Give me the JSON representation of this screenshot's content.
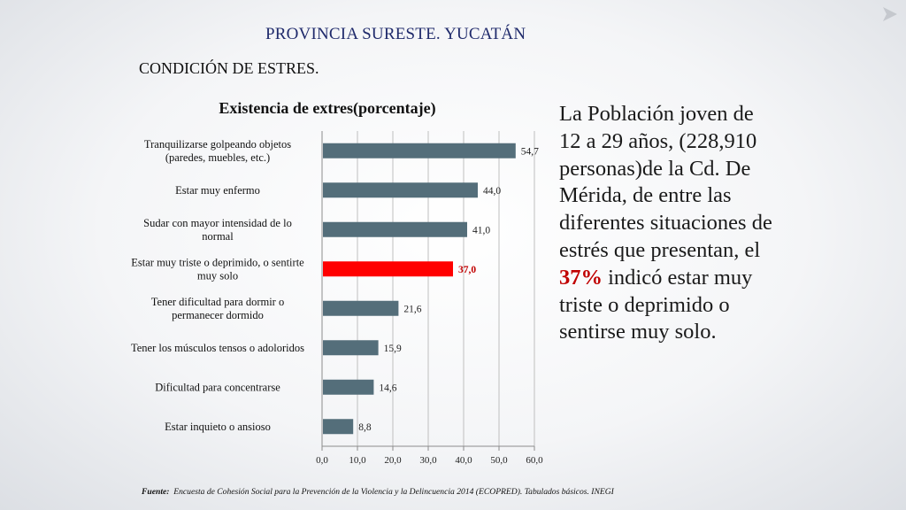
{
  "slide": {
    "title": "PROVINCIA SURESTE. YUCATÁN",
    "subtitle": "CONDICIÓN DE ESTRES."
  },
  "description": {
    "before": "La Población joven de 12 a 29 años, (228,910 personas)de la Cd. De Mérida, de entre las diferentes situaciones de estrés que presentan, el ",
    "highlight": "37%",
    "after": " indicó estar muy triste o deprimido o sentirse muy solo."
  },
  "footnote": {
    "label": "Fuente:",
    "text": "Encuesta de Cohesión Social para la Prevención de la Violencia y la Delincuencia 2014 (ECOPRED). Tabulados básicos. INEGI"
  },
  "colors": {
    "bar": "#546e7a",
    "highlight_bar": "#ff0000",
    "highlight_label": "#c00000",
    "grid": "#bfbfbf"
  },
  "chart_data": {
    "type": "bar",
    "orientation": "horizontal",
    "title": "Existencia de extres(porcentaje)",
    "xlim": [
      0,
      60
    ],
    "xticks": [
      "0,0",
      "10,0",
      "20,0",
      "30,0",
      "40,0",
      "50,0",
      "60,0"
    ],
    "grid": "vertical",
    "categories": [
      [
        "Tranquilizarse golpeando objetos",
        "(paredes, muebles, etc.)"
      ],
      [
        "Estar muy enfermo"
      ],
      [
        "Sudar con mayor intensidad de lo",
        "normal"
      ],
      [
        "Estar muy triste o deprimido, o sentirte",
        "muy solo"
      ],
      [
        "Tener dificultad para dormir o",
        "permanecer dormido"
      ],
      [
        "Tener los músculos tensos o adoloridos"
      ],
      [
        "Dificultad para concentrarse"
      ],
      [
        "Estar inquieto o ansioso"
      ]
    ],
    "values": [
      54.7,
      44.0,
      41.0,
      37.0,
      21.6,
      15.9,
      14.6,
      8.8
    ],
    "value_labels": [
      "54,7",
      "44,0",
      "41,0",
      "37,0",
      "21,6",
      "15,9",
      "14,6",
      "8,8"
    ],
    "highlight_index": 3
  }
}
